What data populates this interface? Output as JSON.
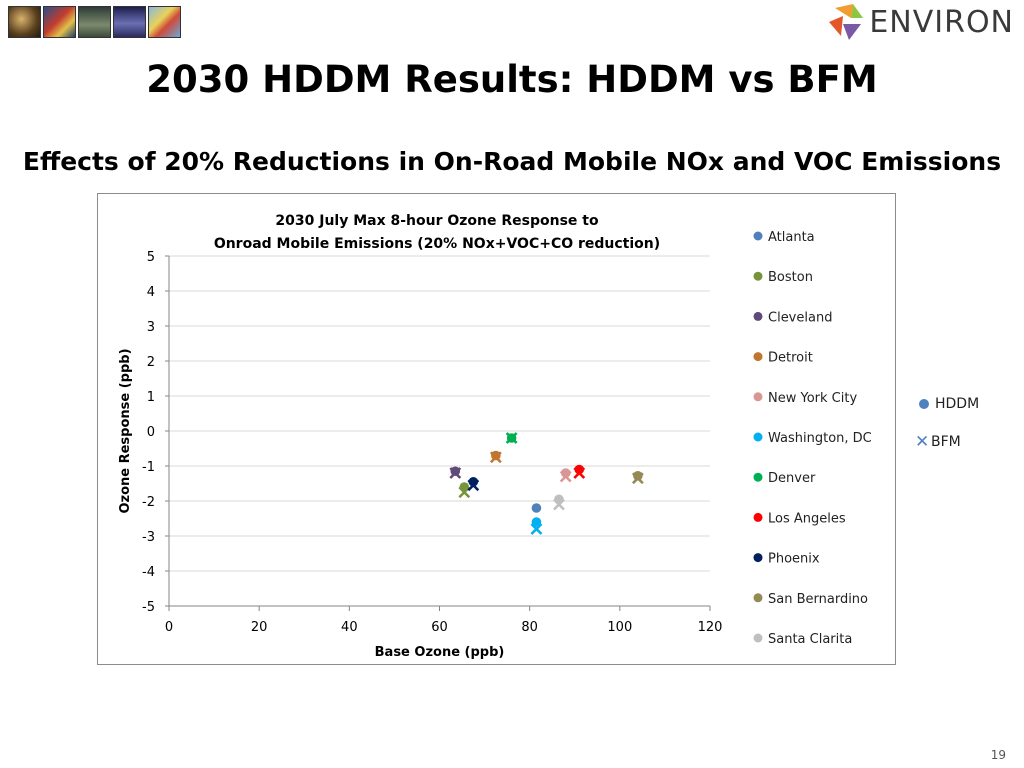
{
  "slide": {
    "title": "2030 HDDM Results: HDDM vs BFM",
    "subtitle": "Effects of 20% Reductions in On-Road Mobile NOx and VOC Emissions",
    "page_number": "19",
    "logo_text": "ENVIRON"
  },
  "legend_markers": {
    "hddm": "HDDM",
    "bfm": "BFM"
  },
  "chart_data": {
    "type": "scatter",
    "title": [
      "2030 July Max 8-hour Ozone Response to",
      "Onroad Mobile Emissions (20% NOx+VOC+CO reduction)"
    ],
    "xlabel": "Base Ozone (ppb)",
    "ylabel": "Ozone Response (ppb)",
    "xlim": [
      0,
      120
    ],
    "ylim": [
      -5,
      5
    ],
    "x_ticks": [
      0,
      20,
      40,
      60,
      80,
      100,
      120
    ],
    "y_ticks": [
      5,
      4,
      3,
      2,
      1,
      0,
      -1,
      -2,
      -3,
      -4,
      -5
    ],
    "grid": "horizontal",
    "legend_position": "right",
    "series": [
      {
        "name": "Atlanta",
        "color": "#4f81bd",
        "points": [
          {
            "x": 81.5,
            "hddm": -2.2,
            "bfm": null
          }
        ]
      },
      {
        "name": "Boston",
        "color": "#77933c",
        "points": [
          {
            "x": 65.5,
            "hddm": -1.6,
            "bfm": -1.75
          }
        ]
      },
      {
        "name": "Cleveland",
        "color": "#604a7b",
        "points": [
          {
            "x": 63.5,
            "hddm": -1.15,
            "bfm": -1.2
          }
        ]
      },
      {
        "name": "Detroit",
        "color": "#c0762f",
        "points": [
          {
            "x": 72.5,
            "hddm": -0.7,
            "bfm": -0.75
          }
        ]
      },
      {
        "name": "New York City",
        "color": "#d99694",
        "points": [
          {
            "x": 88,
            "hddm": -1.2,
            "bfm": -1.3
          }
        ]
      },
      {
        "name": "Washington, DC",
        "color": "#00b0f0",
        "points": [
          {
            "x": 81.5,
            "hddm": -2.6,
            "bfm": -2.8
          }
        ]
      },
      {
        "name": "Denver",
        "color": "#00b050",
        "points": [
          {
            "x": 76,
            "hddm": -0.2,
            "bfm": -0.2
          }
        ]
      },
      {
        "name": "Los Angeles",
        "color": "#ff0000",
        "points": [
          {
            "x": 91,
            "hddm": -1.1,
            "bfm": -1.2
          }
        ]
      },
      {
        "name": "Phoenix",
        "color": "#002060",
        "points": [
          {
            "x": 67.5,
            "hddm": -1.45,
            "bfm": -1.55
          }
        ]
      },
      {
        "name": "San Bernardino",
        "color": "#948a54",
        "points": [
          {
            "x": 104,
            "hddm": -1.28,
            "bfm": -1.35
          }
        ]
      },
      {
        "name": "Santa Clarita",
        "color": "#bfbfbf",
        "points": [
          {
            "x": 86.5,
            "hddm": -1.95,
            "bfm": -2.1
          }
        ]
      }
    ]
  }
}
